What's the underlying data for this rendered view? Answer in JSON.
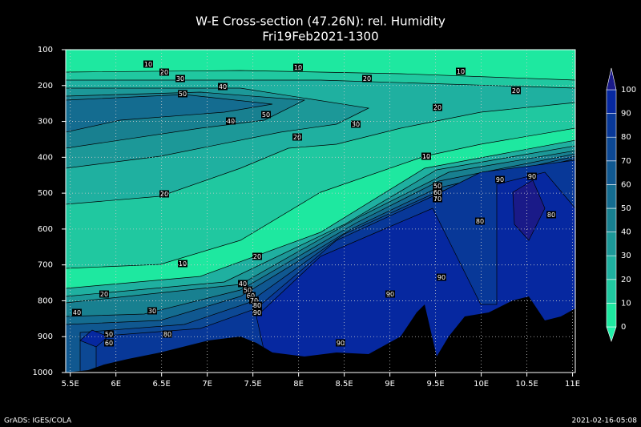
{
  "chart_data": {
    "type": "contour",
    "title": "W-E Cross-section (47.26N): rel. Humidity",
    "subtitle": "Fri19Feb2021-1300",
    "footer_left": "GrADS: IGES/COLA",
    "footer_right": "2021-02-16-05:08",
    "xlim": [
      5.45,
      11.03
    ],
    "xticks": [
      {
        "value": 5.5,
        "label": "5.5E"
      },
      {
        "value": 6,
        "label": "6E"
      },
      {
        "value": 6.5,
        "label": "6.5E"
      },
      {
        "value": 7,
        "label": "7E"
      },
      {
        "value": 7.5,
        "label": "7.5E"
      },
      {
        "value": 8,
        "label": "8E"
      },
      {
        "value": 8.5,
        "label": "8.5E"
      },
      {
        "value": 9,
        "label": "9E"
      },
      {
        "value": 9.5,
        "label": "9.5E"
      },
      {
        "value": 10,
        "label": "10E"
      },
      {
        "value": 10.5,
        "label": "10.5E"
      },
      {
        "value": 11,
        "label": "11E"
      }
    ],
    "ylim": [
      1000,
      100
    ],
    "yticks": [
      100,
      200,
      300,
      400,
      500,
      600,
      700,
      800,
      900,
      1000
    ],
    "grid": true,
    "colorbar": {
      "levels": [
        0,
        10,
        20,
        30,
        40,
        50,
        60,
        70,
        80,
        90,
        100
      ],
      "colors": [
        "#22f0aa",
        "#1ee8a0",
        "#20c8a0",
        "#1fb0a0",
        "#1c9898",
        "#188090",
        "#146c90",
        "#105890",
        "#0c4894",
        "#083898",
        "#0628a0",
        "#1a1a88"
      ]
    },
    "contour_labels": [
      10,
      20,
      30,
      50,
      40,
      10,
      20,
      10,
      20,
      50,
      40,
      20,
      30,
      20,
      10,
      20,
      50,
      60,
      70,
      90,
      90,
      80,
      80,
      10,
      20,
      90,
      40,
      50,
      60,
      70,
      80,
      90,
      90,
      20,
      30,
      40,
      50,
      60,
      80,
      90
    ]
  }
}
